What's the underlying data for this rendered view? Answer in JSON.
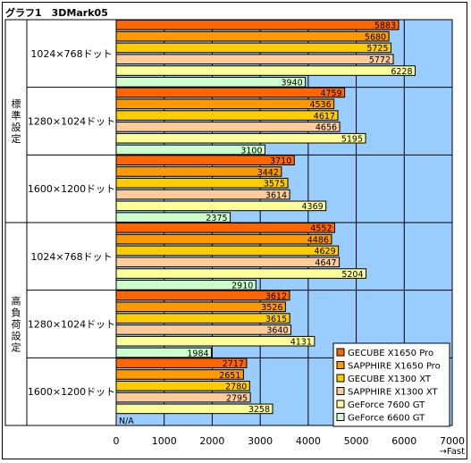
{
  "chart_data": {
    "type": "bar",
    "orientation": "horizontal",
    "title": "グラフ1　3DMark05",
    "x_unit_label": "→Fast",
    "xlim": [
      0,
      7000
    ],
    "xticks": [
      "0",
      "1000",
      "2000",
      "3000",
      "4000",
      "5000",
      "6000",
      "7000"
    ],
    "grid": true,
    "legend_position": "bottom-right",
    "series": [
      {
        "name": "GECUBE X1650 Pro",
        "color": "#ff6600"
      },
      {
        "name": "SAPPHIRE X1650 Pro",
        "color": "#ff9900"
      },
      {
        "name": "GECUBE X1300 XT",
        "color": "#ffcc00"
      },
      {
        "name": "SAPPHIRE X1300 XT",
        "color": "#ffcc99"
      },
      {
        "name": "GeForce 7600 GT",
        "color": "#ffff99"
      },
      {
        "name": "GeForce 6600 GT",
        "color": "#ccffcc"
      }
    ],
    "groups": [
      {
        "label": "標準設定",
        "categories": [
          {
            "label": "1024×768ドット",
            "values": [
              5883,
              5680,
              5725,
              5772,
              6228,
              3940
            ],
            "value_labels": [
              "5883",
              "5680",
              "5725",
              "5772",
              "6228",
              "3940"
            ]
          },
          {
            "label": "1280×1024ドット",
            "values": [
              4759,
              4536,
              4617,
              4656,
              5195,
              3100
            ],
            "value_labels": [
              "4759",
              "4536",
              "4617",
              "4656",
              "5195",
              "3100"
            ]
          },
          {
            "label": "1600×1200ドット",
            "values": [
              3710,
              3442,
              3575,
              3614,
              4369,
              2375
            ],
            "value_labels": [
              "3710",
              "3442",
              "3575",
              "3614",
              "4369",
              "2375"
            ]
          }
        ]
      },
      {
        "label": "高負荷設定",
        "categories": [
          {
            "label": "1024×768ドット",
            "values": [
              4552,
              4486,
              4629,
              4647,
              5204,
              2910
            ],
            "value_labels": [
              "4552",
              "4486",
              "4629",
              "4647",
              "5204",
              "2910"
            ]
          },
          {
            "label": "1280×1024ドット",
            "values": [
              3612,
              3526,
              3615,
              3640,
              4131,
              1984
            ],
            "value_labels": [
              "3612",
              "3526",
              "3615",
              "3640",
              "4131",
              "1984"
            ]
          },
          {
            "label": "1600×1200ドット",
            "values": [
              2717,
              2651,
              2780,
              2795,
              3258,
              null
            ],
            "value_labels": [
              "2717",
              "2651",
              "2780",
              "2795",
              "3258",
              "N/A"
            ]
          }
        ]
      }
    ]
  },
  "colors": {
    "plot_background": "#99ccff",
    "gridline": "#000000",
    "bar_outline": "#000000"
  }
}
